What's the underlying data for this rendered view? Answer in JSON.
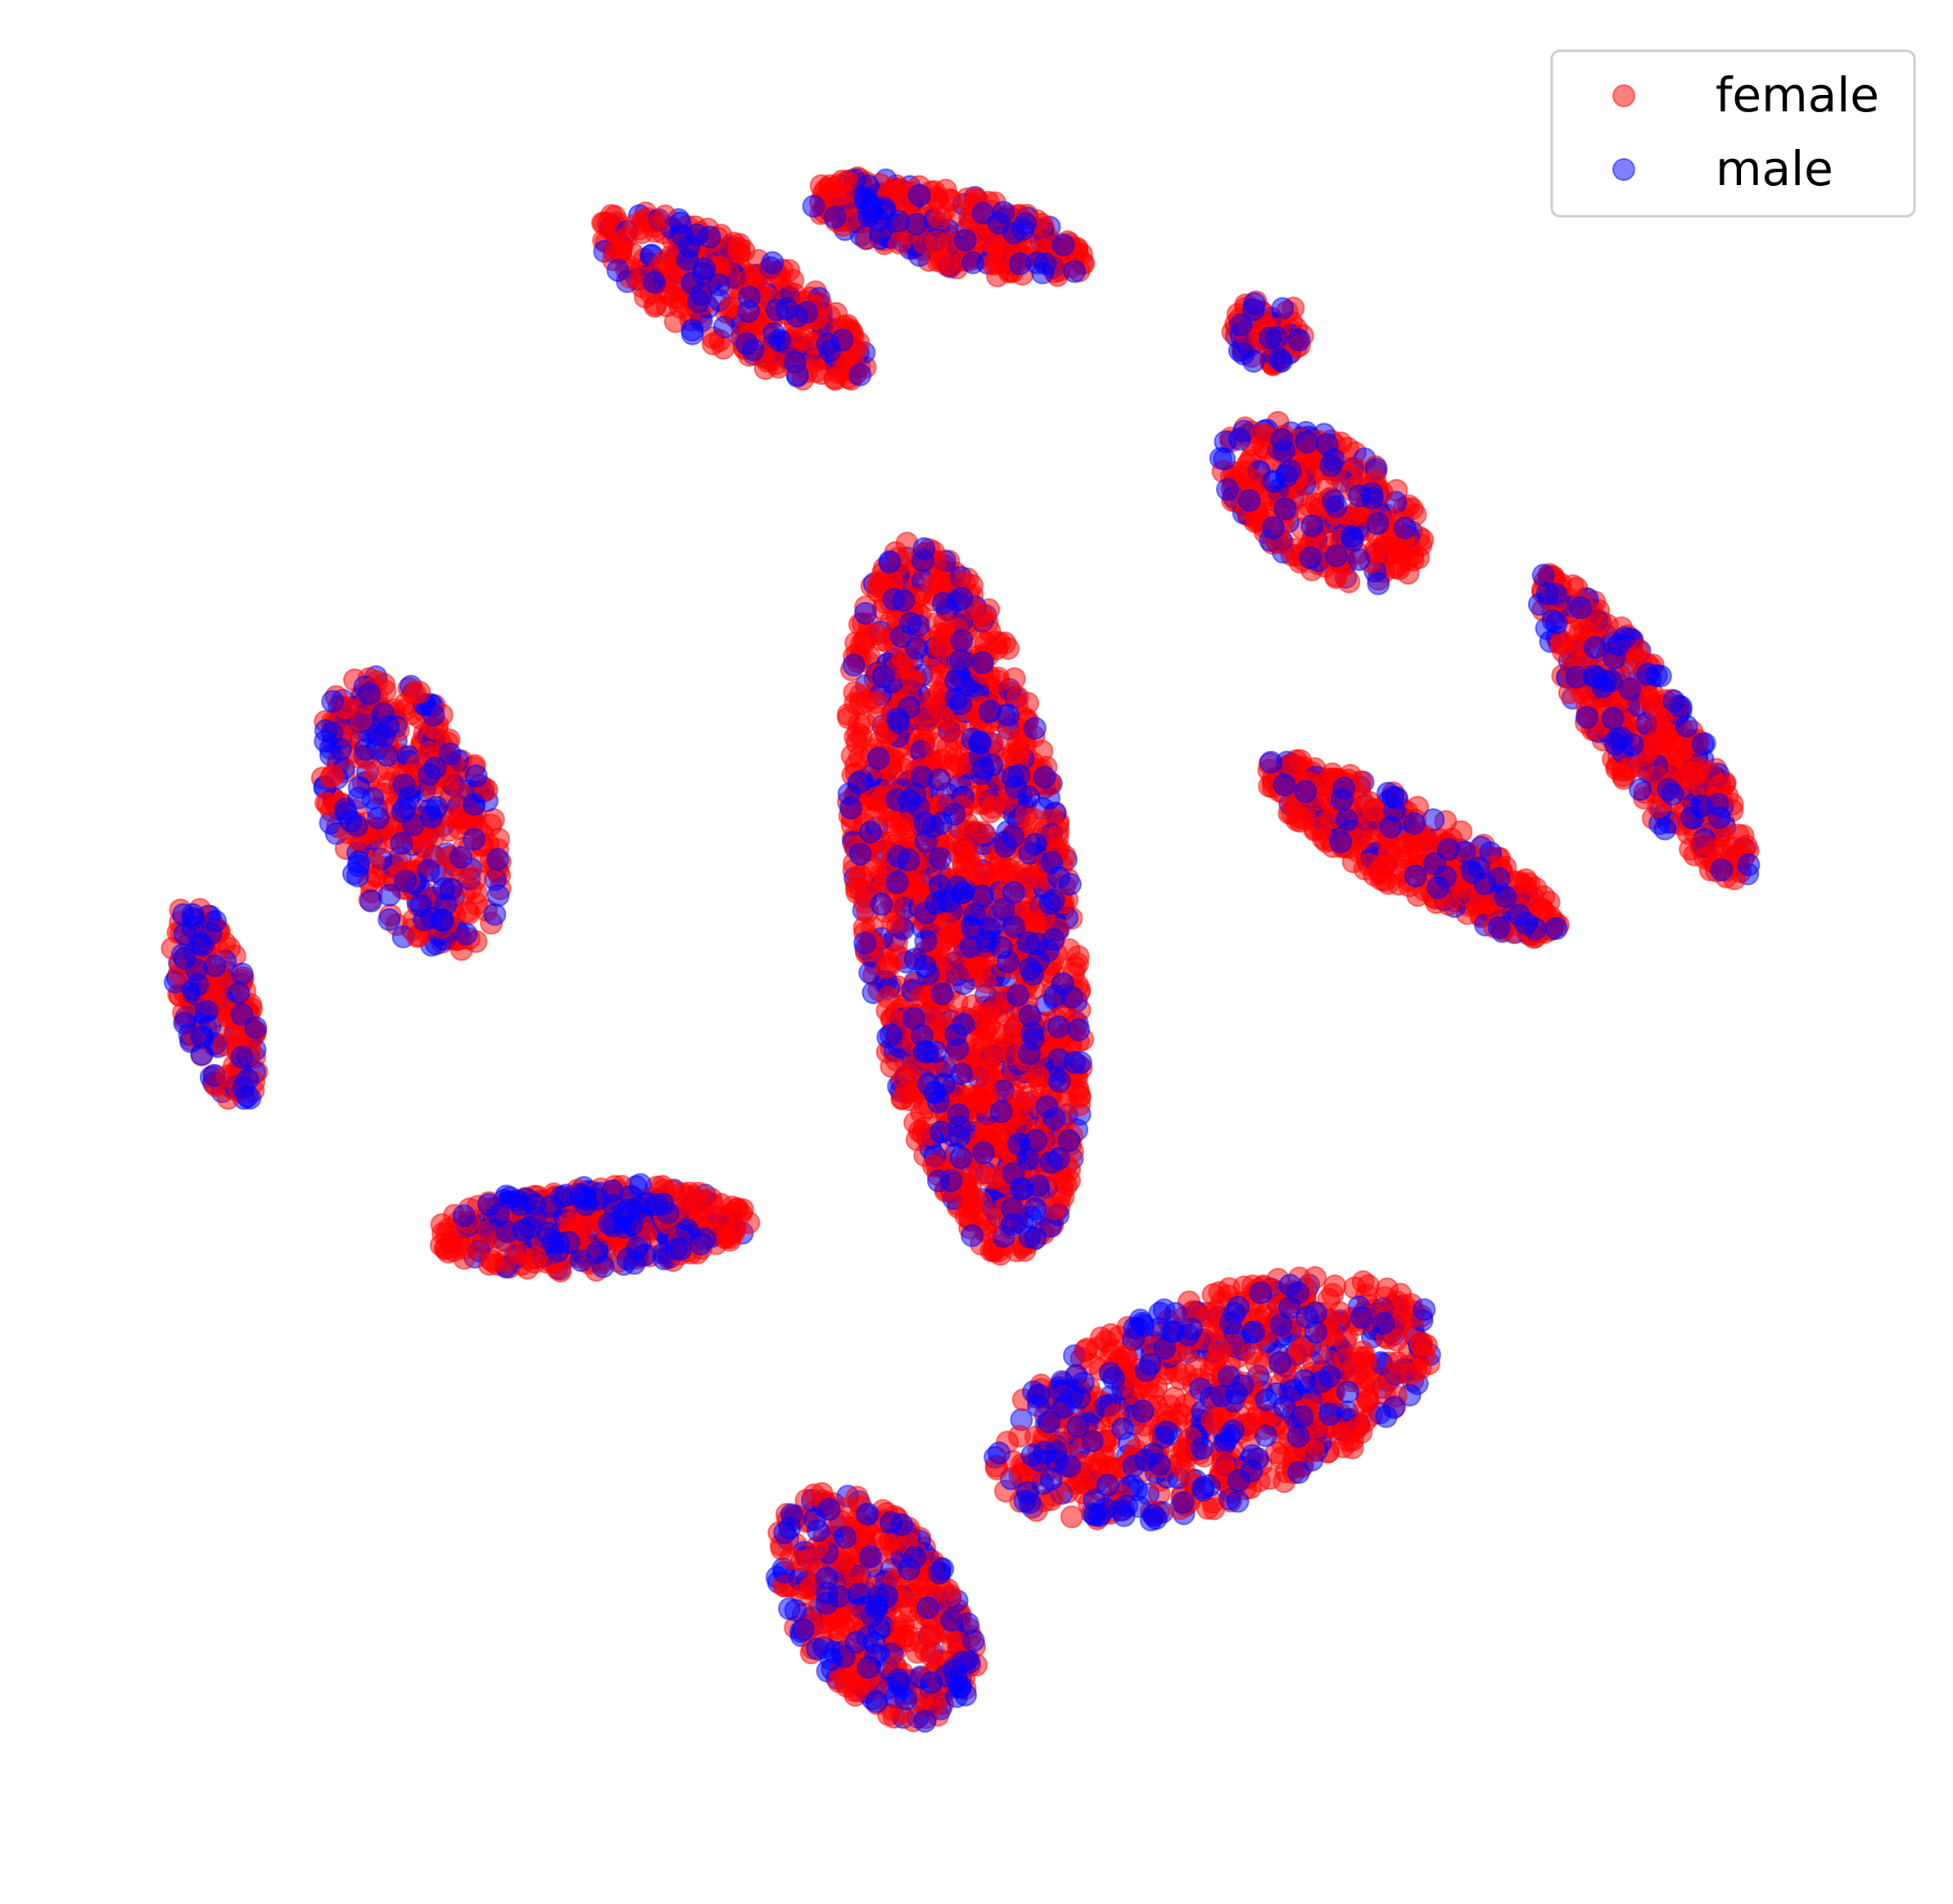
{
  "chart_data": {
    "type": "scatter",
    "title": "",
    "xlabel": "",
    "ylabel": "",
    "axes_visible": false,
    "grid": false,
    "legend_position": "top-right",
    "xlim": [
      0,
      1
    ],
    "ylim": [
      0,
      1
    ],
    "series": [
      {
        "name": "female",
        "color": "#ff0000",
        "alpha": 0.5,
        "cluster_centers": [
          [
            0.36,
            0.88
          ],
          [
            0.48,
            0.92
          ],
          [
            0.66,
            0.86
          ],
          [
            0.69,
            0.76
          ],
          [
            0.87,
            0.63
          ],
          [
            0.74,
            0.56
          ],
          [
            0.18,
            0.58
          ],
          [
            0.07,
            0.47
          ],
          [
            0.28,
            0.34
          ],
          [
            0.49,
            0.53
          ],
          [
            0.63,
            0.24
          ],
          [
            0.44,
            0.12
          ]
        ]
      },
      {
        "name": "male",
        "color": "#0000ff",
        "alpha": 0.5,
        "cluster_centers": [
          [
            0.36,
            0.88
          ],
          [
            0.48,
            0.92
          ],
          [
            0.66,
            0.86
          ],
          [
            0.69,
            0.76
          ],
          [
            0.87,
            0.63
          ],
          [
            0.74,
            0.56
          ],
          [
            0.18,
            0.58
          ],
          [
            0.07,
            0.47
          ],
          [
            0.28,
            0.34
          ],
          [
            0.49,
            0.53
          ],
          [
            0.63,
            0.24
          ],
          [
            0.44,
            0.12
          ]
        ]
      }
    ]
  }
}
